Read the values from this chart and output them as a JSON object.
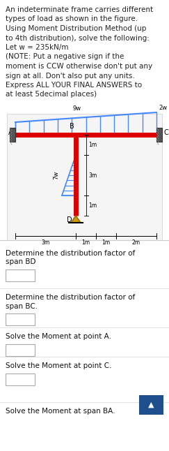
{
  "title_text": "An indeterminate frame carries different\ntypes of load as shown in the figure.\nUsing Moment Distribution Method (up\nto 4th distribution), solve the following:\nLet w = 235kN/m\n(NOTE: Put a negative sign if the\nmoment is CCW otherwise don't put any\nsign at all. Don't also put any units.\nExpress ALL YOUR FINAL ANSWERS to\nat least 5decimal places)",
  "questions": [
    "Determine the distribution factor of\nspan BD",
    "Determine the distribution factor of\nspan BC.",
    "Solve the Moment at point A.",
    "Solve the Moment at point C.",
    "Solve the Moment at span BA."
  ],
  "bg_color": "#ffffff",
  "button_color": "#1f4e8c",
  "diagram_bg": "#eeeeee",
  "beam_color": "#dd0000",
  "load_color": "#4488ff",
  "wall_color": "#555555",
  "pin_color": "#cc9900",
  "dim_color": "#000000"
}
